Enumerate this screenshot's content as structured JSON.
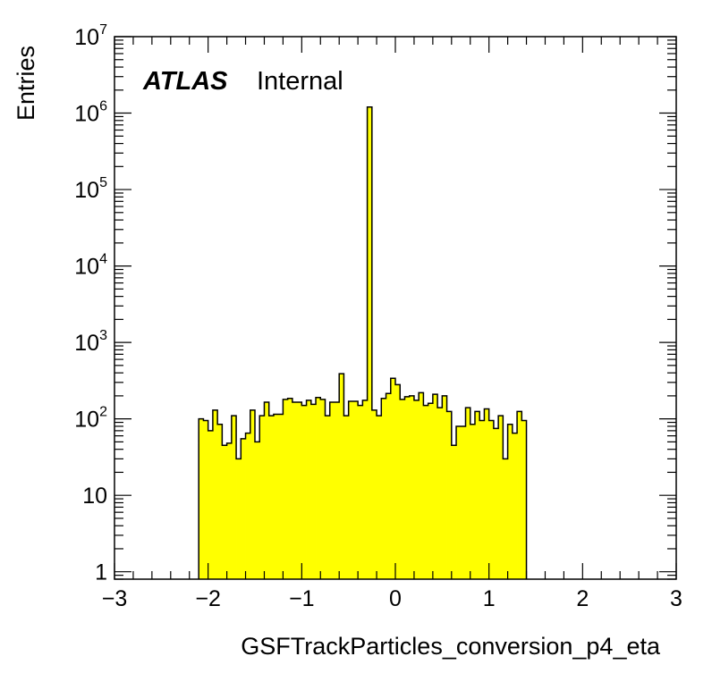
{
  "chart_data": {
    "type": "bar",
    "xlabel": "GSFTrackParticles_conversion_p4_eta",
    "ylabel": "Entries",
    "xlim": [
      -3,
      3
    ],
    "ylim": [
      0.8,
      10000000
    ],
    "yscale": "log",
    "grid": false,
    "bar_color": "#ffff00",
    "edge_color": "#000000",
    "label": {
      "bold": "ATLAS",
      "text": "Internal"
    },
    "xticks": [
      {
        "value": -3,
        "label": "−3"
      },
      {
        "value": -2,
        "label": "−2"
      },
      {
        "value": -1,
        "label": "−1"
      },
      {
        "value": 0,
        "label": "0"
      },
      {
        "value": 1,
        "label": "1"
      },
      {
        "value": 2,
        "label": "2"
      },
      {
        "value": 3,
        "label": "3"
      }
    ],
    "yticks": [
      {
        "value": 1,
        "base": "1",
        "exp": ""
      },
      {
        "value": 10,
        "base": "10",
        "exp": ""
      },
      {
        "value": 100,
        "base": "10",
        "exp": "2"
      },
      {
        "value": 1000,
        "base": "10",
        "exp": "3"
      },
      {
        "value": 10000,
        "base": "10",
        "exp": "4"
      },
      {
        "value": 100000,
        "base": "10",
        "exp": "5"
      },
      {
        "value": 1000000,
        "base": "10",
        "exp": "6"
      },
      {
        "value": 10000000,
        "base": "10",
        "exp": "7"
      }
    ],
    "bin_start": -2.1,
    "bin_width": 0.05,
    "values": [
      100,
      95,
      70,
      130,
      85,
      45,
      48,
      110,
      30,
      55,
      65,
      130,
      50,
      110,
      165,
      110,
      115,
      115,
      180,
      185,
      165,
      165,
      150,
      175,
      155,
      190,
      180,
      110,
      165,
      165,
      390,
      110,
      170,
      170,
      150,
      175,
      1200000,
      130,
      110,
      185,
      215,
      340,
      280,
      180,
      195,
      200,
      175,
      220,
      150,
      160,
      210,
      140,
      200,
      125,
      45,
      80,
      80,
      140,
      85,
      125,
      95,
      135,
      95,
      75,
      110,
      30,
      85,
      65,
      125,
      95
    ]
  }
}
